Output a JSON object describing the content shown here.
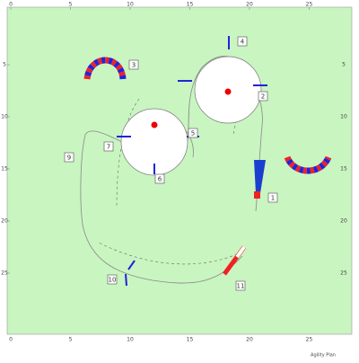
{
  "axes": {
    "x_ticks": [
      0,
      5,
      10,
      15,
      20,
      25
    ],
    "y_ticks": [
      5,
      10,
      15,
      20,
      25
    ]
  },
  "obstacles": [
    {
      "label": "1"
    },
    {
      "label": "2"
    },
    {
      "label": "3"
    },
    {
      "label": "4"
    },
    {
      "label": "5"
    },
    {
      "label": "6"
    },
    {
      "label": "7"
    },
    {
      "label": "9"
    },
    {
      "label": "10"
    },
    {
      "label": "11"
    }
  ],
  "caption": "Agility Plan"
}
